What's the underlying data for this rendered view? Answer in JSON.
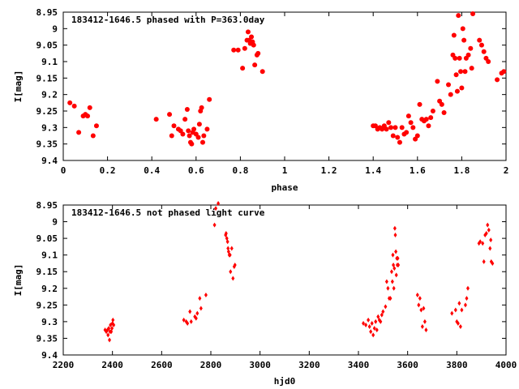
{
  "colors": {
    "marker": "#ff0000",
    "axis": "#000000",
    "background": "#ffffff"
  },
  "chart_data": [
    {
      "type": "scatter",
      "title": "183412-1646.5 phased with P=363.0day",
      "xlabel": "phase",
      "ylabel": "I[mag]",
      "xlim": [
        0,
        2
      ],
      "ylim": [
        9.4,
        8.95
      ],
      "y_inverted": true,
      "grid": false,
      "marker": "filled-circle",
      "x_ticks": [
        "0",
        "0.2",
        "0.4",
        "0.6",
        "0.8",
        "1",
        "1.2",
        "1.4",
        "1.6",
        "1.8",
        "2"
      ],
      "y_ticks": [
        "8.95",
        "9",
        "9.05",
        "9.1",
        "9.15",
        "9.2",
        "9.25",
        "9.3",
        "9.35",
        "9.4"
      ],
      "points": [
        [
          0.03,
          9.225
        ],
        [
          0.05,
          9.235
        ],
        [
          0.07,
          9.315
        ],
        [
          0.09,
          9.265
        ],
        [
          0.1,
          9.26
        ],
        [
          0.11,
          9.265
        ],
        [
          0.12,
          9.24
        ],
        [
          0.135,
          9.325
        ],
        [
          0.15,
          9.295
        ],
        [
          0.42,
          9.275
        ],
        [
          0.48,
          9.26
        ],
        [
          0.49,
          9.325
        ],
        [
          0.5,
          9.295
        ],
        [
          0.52,
          9.305
        ],
        [
          0.53,
          9.31
        ],
        [
          0.54,
          9.32
        ],
        [
          0.55,
          9.275
        ],
        [
          0.56,
          9.245
        ],
        [
          0.565,
          9.31
        ],
        [
          0.57,
          9.325
        ],
        [
          0.575,
          9.345
        ],
        [
          0.58,
          9.35
        ],
        [
          0.585,
          9.315
        ],
        [
          0.59,
          9.305
        ],
        [
          0.6,
          9.32
        ],
        [
          0.61,
          9.33
        ],
        [
          0.615,
          9.29
        ],
        [
          0.62,
          9.25
        ],
        [
          0.625,
          9.24
        ],
        [
          0.63,
          9.345
        ],
        [
          0.635,
          9.325
        ],
        [
          0.65,
          9.305
        ],
        [
          0.66,
          9.215
        ],
        [
          0.77,
          9.065
        ],
        [
          0.79,
          9.065
        ],
        [
          0.81,
          9.12
        ],
        [
          0.82,
          9.06
        ],
        [
          0.83,
          9.035
        ],
        [
          0.835,
          9.01
        ],
        [
          0.84,
          9.035
        ],
        [
          0.845,
          9.045
        ],
        [
          0.85,
          9.025
        ],
        [
          0.855,
          9.04
        ],
        [
          0.86,
          9.05
        ],
        [
          0.865,
          9.11
        ],
        [
          0.875,
          9.08
        ],
        [
          0.88,
          9.075
        ],
        [
          0.9,
          9.13
        ],
        [
          1.4,
          9.295
        ],
        [
          1.41,
          9.295
        ],
        [
          1.42,
          9.305
        ],
        [
          1.43,
          9.3
        ],
        [
          1.44,
          9.305
        ],
        [
          1.45,
          9.295
        ],
        [
          1.46,
          9.305
        ],
        [
          1.47,
          9.285
        ],
        [
          1.48,
          9.3
        ],
        [
          1.49,
          9.325
        ],
        [
          1.5,
          9.3
        ],
        [
          1.51,
          9.33
        ],
        [
          1.52,
          9.345
        ],
        [
          1.53,
          9.3
        ],
        [
          1.54,
          9.32
        ],
        [
          1.55,
          9.315
        ],
        [
          1.56,
          9.265
        ],
        [
          1.57,
          9.285
        ],
        [
          1.58,
          9.3
        ],
        [
          1.59,
          9.335
        ],
        [
          1.6,
          9.325
        ],
        [
          1.61,
          9.23
        ],
        [
          1.62,
          9.275
        ],
        [
          1.63,
          9.28
        ],
        [
          1.64,
          9.275
        ],
        [
          1.65,
          9.295
        ],
        [
          1.66,
          9.27
        ],
        [
          1.67,
          9.25
        ],
        [
          1.69,
          9.16
        ],
        [
          1.7,
          9.22
        ],
        [
          1.71,
          9.23
        ],
        [
          1.72,
          9.255
        ],
        [
          1.74,
          9.17
        ],
        [
          1.75,
          9.2
        ],
        [
          1.76,
          9.08
        ],
        [
          1.765,
          9.02
        ],
        [
          1.77,
          9.09
        ],
        [
          1.775,
          9.14
        ],
        [
          1.78,
          9.19
        ],
        [
          1.785,
          8.96
        ],
        [
          1.79,
          9.09
        ],
        [
          1.795,
          9.13
        ],
        [
          1.8,
          9.18
        ],
        [
          1.805,
          9.0
        ],
        [
          1.81,
          9.035
        ],
        [
          1.815,
          9.13
        ],
        [
          1.82,
          9.09
        ],
        [
          1.83,
          9.08
        ],
        [
          1.84,
          9.06
        ],
        [
          1.845,
          9.12
        ],
        [
          1.85,
          8.955
        ],
        [
          1.88,
          9.035
        ],
        [
          1.89,
          9.05
        ],
        [
          1.9,
          9.07
        ],
        [
          1.91,
          9.09
        ],
        [
          1.92,
          9.1
        ],
        [
          1.96,
          9.155
        ],
        [
          1.98,
          9.135
        ],
        [
          1.99,
          9.13
        ]
      ]
    },
    {
      "type": "scatter",
      "title": "183412-1646.5 not phased light curve",
      "xlabel": "hjd0",
      "ylabel": "I[mag]",
      "xlim": [
        2200,
        4000
      ],
      "ylim": [
        9.4,
        8.95
      ],
      "y_inverted": true,
      "grid": false,
      "marker": "diamond",
      "x_ticks": [
        "2200",
        "2400",
        "2600",
        "2800",
        "3000",
        "3200",
        "3400",
        "3600",
        "3800",
        "4000"
      ],
      "y_ticks": [
        "8.95",
        "9",
        "9.05",
        "9.1",
        "9.15",
        "9.2",
        "9.25",
        "9.3",
        "9.35",
        "9.4"
      ],
      "points": [
        [
          2370,
          9.325
        ],
        [
          2375,
          9.33
        ],
        [
          2380,
          9.325
        ],
        [
          2382,
          9.34
        ],
        [
          2385,
          9.32
        ],
        [
          2388,
          9.355
        ],
        [
          2390,
          9.33
        ],
        [
          2392,
          9.31
        ],
        [
          2395,
          9.33
        ],
        [
          2398,
          9.32
        ],
        [
          2400,
          9.305
        ],
        [
          2402,
          9.295
        ],
        [
          2405,
          9.31
        ],
        [
          2690,
          9.295
        ],
        [
          2700,
          9.3
        ],
        [
          2705,
          9.305
        ],
        [
          2715,
          9.27
        ],
        [
          2720,
          9.3
        ],
        [
          2735,
          9.285
        ],
        [
          2740,
          9.29
        ],
        [
          2745,
          9.275
        ],
        [
          2755,
          9.23
        ],
        [
          2760,
          9.26
        ],
        [
          2780,
          9.22
        ],
        [
          2815,
          9.01
        ],
        [
          2820,
          8.96
        ],
        [
          2830,
          8.945
        ],
        [
          2860,
          9.04
        ],
        [
          2862,
          9.035
        ],
        [
          2865,
          9.05
        ],
        [
          2868,
          9.06
        ],
        [
          2870,
          9.08
        ],
        [
          2872,
          9.09
        ],
        [
          2875,
          9.1
        ],
        [
          2878,
          9.1
        ],
        [
          2880,
          9.15
        ],
        [
          2885,
          9.08
        ],
        [
          2890,
          9.17
        ],
        [
          2895,
          9.135
        ],
        [
          2898,
          9.13
        ],
        [
          3420,
          9.305
        ],
        [
          3430,
          9.31
        ],
        [
          3440,
          9.295
        ],
        [
          3445,
          9.315
        ],
        [
          3450,
          9.33
        ],
        [
          3455,
          9.305
        ],
        [
          3460,
          9.34
        ],
        [
          3465,
          9.32
        ],
        [
          3470,
          9.3
        ],
        [
          3475,
          9.325
        ],
        [
          3480,
          9.285
        ],
        [
          3485,
          9.295
        ],
        [
          3490,
          9.3
        ],
        [
          3495,
          9.28
        ],
        [
          3500,
          9.27
        ],
        [
          3510,
          9.255
        ],
        [
          3515,
          9.18
        ],
        [
          3520,
          9.2
        ],
        [
          3525,
          9.23
        ],
        [
          3530,
          9.23
        ],
        [
          3535,
          9.15
        ],
        [
          3538,
          9.18
        ],
        [
          3540,
          9.1
        ],
        [
          3542,
          9.13
        ],
        [
          3544,
          9.2
        ],
        [
          3546,
          9.14
        ],
        [
          3548,
          9.02
        ],
        [
          3550,
          9.04
        ],
        [
          3552,
          9.09
        ],
        [
          3554,
          9.16
        ],
        [
          3556,
          9.11
        ],
        [
          3558,
          9.13
        ],
        [
          3560,
          9.11
        ],
        [
          3562,
          9.13
        ],
        [
          3640,
          9.22
        ],
        [
          3645,
          9.25
        ],
        [
          3650,
          9.23
        ],
        [
          3655,
          9.265
        ],
        [
          3660,
          9.315
        ],
        [
          3665,
          9.26
        ],
        [
          3670,
          9.3
        ],
        [
          3675,
          9.325
        ],
        [
          3780,
          9.275
        ],
        [
          3795,
          9.265
        ],
        [
          3800,
          9.3
        ],
        [
          3805,
          9.305
        ],
        [
          3810,
          9.245
        ],
        [
          3815,
          9.315
        ],
        [
          3820,
          9.265
        ],
        [
          3835,
          9.25
        ],
        [
          3840,
          9.23
        ],
        [
          3845,
          9.2
        ],
        [
          3890,
          9.065
        ],
        [
          3895,
          9.06
        ],
        [
          3905,
          9.065
        ],
        [
          3910,
          9.12
        ],
        [
          3915,
          9.04
        ],
        [
          3920,
          9.035
        ],
        [
          3925,
          9.01
        ],
        [
          3930,
          9.025
        ],
        [
          3935,
          9.08
        ],
        [
          3938,
          9.055
        ],
        [
          3940,
          9.12
        ],
        [
          3945,
          9.125
        ]
      ]
    }
  ]
}
